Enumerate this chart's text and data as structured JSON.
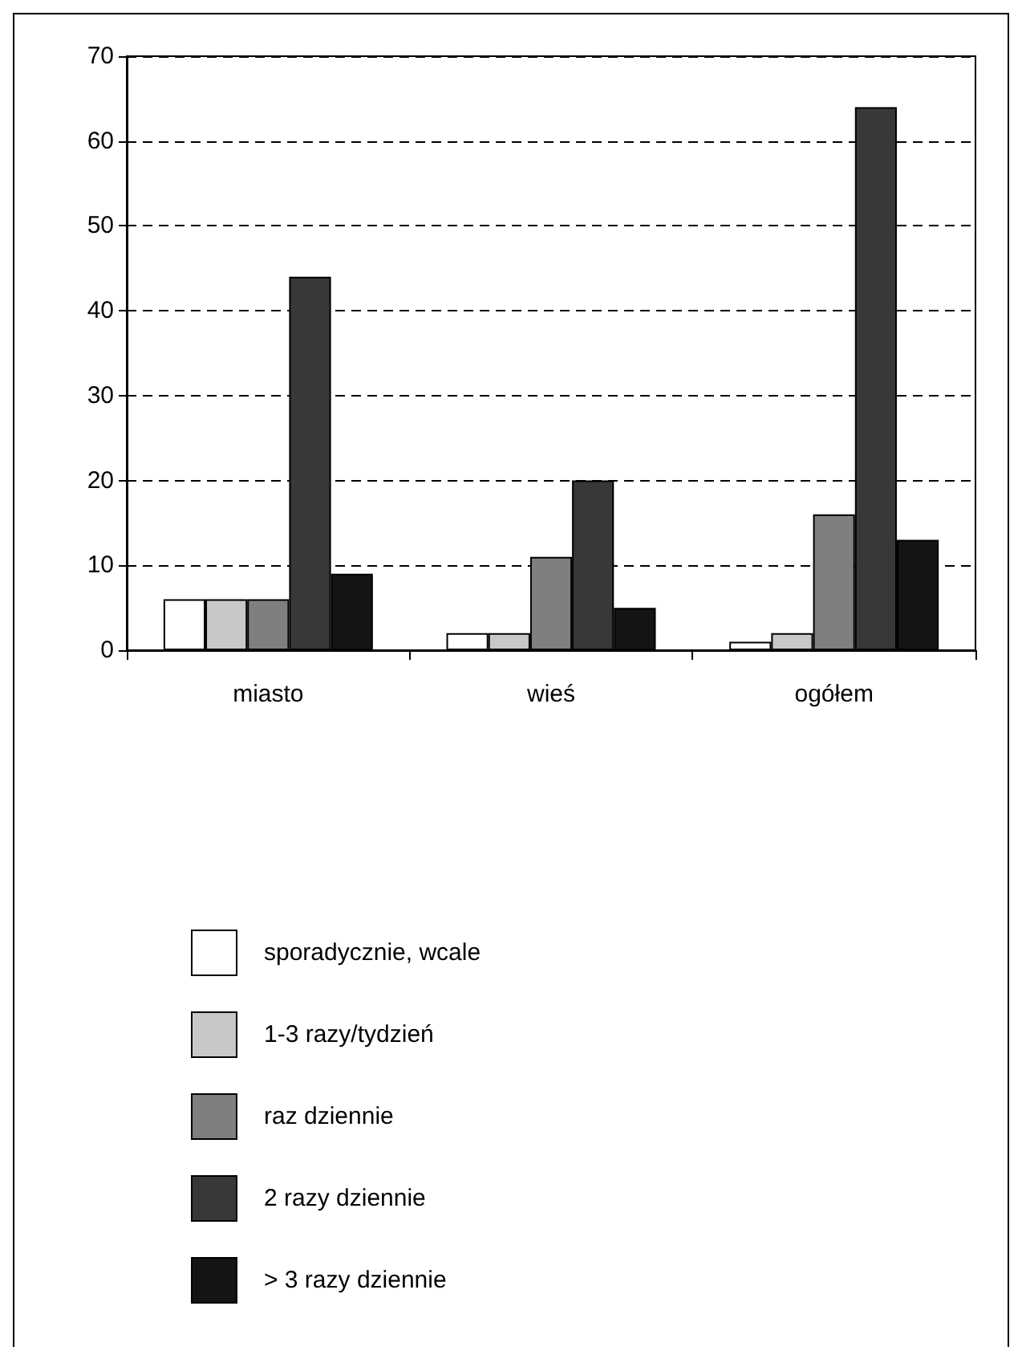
{
  "chart_data": {
    "type": "bar",
    "categories": [
      "miasto",
      "wieś",
      "ogółem"
    ],
    "series": [
      {
        "name": "sporadycznie, wcale",
        "color": "#ffffff",
        "values": [
          6,
          2,
          1
        ]
      },
      {
        "name": "1-3 razy/tydzień",
        "color": "#c8c8c8",
        "values": [
          6,
          2,
          2
        ]
      },
      {
        "name": "raz dziennie",
        "color": "#7f7f7f",
        "values": [
          6,
          11,
          16
        ]
      },
      {
        "name": "2 razy dziennie",
        "color": "#383838",
        "values": [
          44,
          20,
          64
        ]
      },
      {
        "name": "> 3 razy dziennie",
        "color": "#141414",
        "values": [
          9,
          5,
          13
        ]
      }
    ],
    "ylim": [
      0,
      70
    ],
    "yticks": [
      0,
      10,
      20,
      30,
      40,
      50,
      60,
      70
    ],
    "grid": "y",
    "legend": "bottom"
  }
}
